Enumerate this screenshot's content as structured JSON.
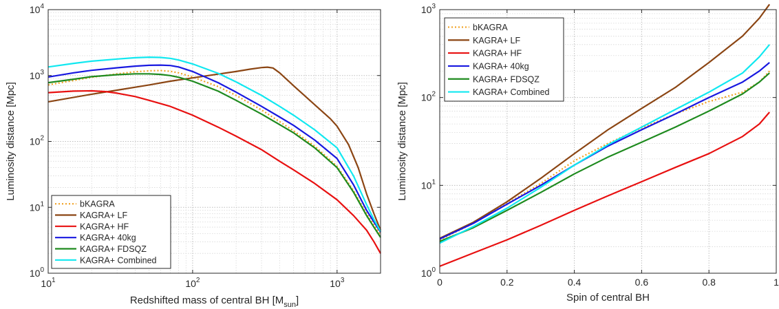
{
  "chart_data": [
    {
      "type": "line",
      "xscale": "log",
      "yscale": "log",
      "xlim": [
        10,
        2000
      ],
      "ylim": [
        1,
        10000
      ],
      "xlabel_main": "Redshifted mass of central BH [M",
      "xlabel_sub": "sun",
      "xlabel_end": "]",
      "ylabel": "Luminosity distance [Mpc]",
      "xticks": [
        {
          "value": 10,
          "base": "10",
          "exp": "1"
        },
        {
          "value": 100,
          "base": "10",
          "exp": "2"
        },
        {
          "value": 1000,
          "base": "10",
          "exp": "3"
        }
      ],
      "yticks": [
        {
          "value": 1,
          "base": "10",
          "exp": "0"
        },
        {
          "value": 10,
          "base": "10",
          "exp": "1"
        },
        {
          "value": 100,
          "base": "10",
          "exp": "2"
        },
        {
          "value": 1000,
          "base": "10",
          "exp": "3"
        },
        {
          "value": 10000,
          "base": "10",
          "exp": "4"
        }
      ],
      "grid": true,
      "legend_position": "bottom-left",
      "series": [
        {
          "name": "bKAGRA",
          "color": "#f0a020",
          "dash": true,
          "points": [
            [
              10,
              720
            ],
            [
              15,
              840
            ],
            [
              20,
              940
            ],
            [
              30,
              1060
            ],
            [
              40,
              1140
            ],
            [
              50,
              1180
            ],
            [
              60,
              1190
            ],
            [
              70,
              1160
            ],
            [
              80,
              1100
            ],
            [
              100,
              950
            ],
            [
              150,
              680
            ],
            [
              200,
              500
            ],
            [
              300,
              300
            ],
            [
              400,
              200
            ],
            [
              500,
              145
            ],
            [
              700,
              85
            ],
            [
              1000,
              42
            ],
            [
              1300,
              18
            ],
            [
              1600,
              8
            ],
            [
              1800,
              5.5
            ],
            [
              2000,
              3.8
            ]
          ]
        },
        {
          "name": "KAGRA+ LF",
          "color": "#8b4513",
          "dash": false,
          "points": [
            [
              10,
              400
            ],
            [
              20,
              520
            ],
            [
              30,
              600
            ],
            [
              50,
              720
            ],
            [
              70,
              820
            ],
            [
              100,
              920
            ],
            [
              150,
              1050
            ],
            [
              200,
              1150
            ],
            [
              250,
              1250
            ],
            [
              300,
              1320
            ],
            [
              330,
              1340
            ],
            [
              360,
              1300
            ],
            [
              400,
              1100
            ],
            [
              500,
              700
            ],
            [
              700,
              360
            ],
            [
              900,
              220
            ],
            [
              1000,
              170
            ],
            [
              1200,
              90
            ],
            [
              1400,
              40
            ],
            [
              1600,
              16
            ],
            [
              1800,
              8
            ],
            [
              2000,
              4.5
            ]
          ]
        },
        {
          "name": "KAGRA+ HF",
          "color": "#e81010",
          "dash": false,
          "points": [
            [
              10,
              550
            ],
            [
              15,
              580
            ],
            [
              20,
              585
            ],
            [
              25,
              570
            ],
            [
              30,
              540
            ],
            [
              40,
              480
            ],
            [
              50,
              420
            ],
            [
              70,
              340
            ],
            [
              100,
              250
            ],
            [
              150,
              165
            ],
            [
              200,
              120
            ],
            [
              300,
              75
            ],
            [
              400,
              50
            ],
            [
              500,
              37
            ],
            [
              700,
              23
            ],
            [
              1000,
              13
            ],
            [
              1300,
              7.5
            ],
            [
              1600,
              4.5
            ],
            [
              1800,
              3
            ],
            [
              2000,
              2
            ]
          ]
        },
        {
          "name": "KAGRA+ 40kg",
          "color": "#1818e0",
          "dash": false,
          "points": [
            [
              10,
              950
            ],
            [
              15,
              1100
            ],
            [
              20,
              1200
            ],
            [
              30,
              1310
            ],
            [
              40,
              1390
            ],
            [
              50,
              1430
            ],
            [
              60,
              1440
            ],
            [
              70,
              1420
            ],
            [
              80,
              1350
            ],
            [
              100,
              1150
            ],
            [
              150,
              780
            ],
            [
              200,
              560
            ],
            [
              300,
              340
            ],
            [
              400,
              235
            ],
            [
              500,
              175
            ],
            [
              700,
              105
            ],
            [
              1000,
              55
            ],
            [
              1300,
              22
            ],
            [
              1600,
              9
            ],
            [
              1800,
              6
            ],
            [
              2000,
              4.2
            ]
          ]
        },
        {
          "name": "KAGRA+ FDSQZ",
          "color": "#1e8a1e",
          "dash": false,
          "points": [
            [
              10,
              780
            ],
            [
              15,
              880
            ],
            [
              20,
              960
            ],
            [
              30,
              1030
            ],
            [
              40,
              1060
            ],
            [
              50,
              1060
            ],
            [
              60,
              1040
            ],
            [
              70,
              1000
            ],
            [
              80,
              940
            ],
            [
              100,
              820
            ],
            [
              150,
              580
            ],
            [
              200,
              420
            ],
            [
              300,
              260
            ],
            [
              400,
              180
            ],
            [
              500,
              135
            ],
            [
              700,
              80
            ],
            [
              1000,
              40
            ],
            [
              1300,
              17
            ],
            [
              1600,
              7.5
            ],
            [
              1800,
              5
            ],
            [
              2000,
              3.5
            ]
          ]
        },
        {
          "name": "KAGRA+ Combined",
          "color": "#10e8f0",
          "dash": false,
          "points": [
            [
              10,
              1350
            ],
            [
              15,
              1530
            ],
            [
              20,
              1650
            ],
            [
              30,
              1780
            ],
            [
              40,
              1860
            ],
            [
              50,
              1900
            ],
            [
              60,
              1880
            ],
            [
              70,
              1820
            ],
            [
              80,
              1720
            ],
            [
              100,
              1500
            ],
            [
              150,
              1080
            ],
            [
              200,
              800
            ],
            [
              300,
              500
            ],
            [
              400,
              340
            ],
            [
              500,
              250
            ],
            [
              700,
              150
            ],
            [
              1000,
              80
            ],
            [
              1300,
              30
            ],
            [
              1600,
              11
            ],
            [
              1800,
              6.5
            ],
            [
              2000,
              4.3
            ]
          ]
        }
      ]
    },
    {
      "type": "line",
      "xscale": "linear",
      "yscale": "log",
      "xlim": [
        0,
        1
      ],
      "ylim": [
        1,
        1000
      ],
      "xlabel": "Spin of central BH",
      "ylabel": "Luminosity distance [Mpc]",
      "xticks": [
        {
          "value": 0,
          "label": "0"
        },
        {
          "value": 0.2,
          "label": "0.2"
        },
        {
          "value": 0.4,
          "label": "0.4"
        },
        {
          "value": 0.6,
          "label": "0.6"
        },
        {
          "value": 0.8,
          "label": "0.8"
        },
        {
          "value": 1,
          "label": "1"
        }
      ],
      "yticks": [
        {
          "value": 1,
          "base": "10",
          "exp": "0"
        },
        {
          "value": 10,
          "base": "10",
          "exp": "1"
        },
        {
          "value": 100,
          "base": "10",
          "exp": "2"
        },
        {
          "value": 1000,
          "base": "10",
          "exp": "3"
        }
      ],
      "grid": true,
      "legend_position": "top-left",
      "series": [
        {
          "name": "bKAGRA",
          "color": "#f0a020",
          "dash": true,
          "points": [
            [
              0,
              2.4
            ],
            [
              0.1,
              3.7
            ],
            [
              0.2,
              6.2
            ],
            [
              0.3,
              10.5
            ],
            [
              0.4,
              19
            ],
            [
              0.5,
              30
            ],
            [
              0.6,
              45
            ],
            [
              0.7,
              65
            ],
            [
              0.8,
              90
            ],
            [
              0.9,
              115
            ],
            [
              0.95,
              150
            ],
            [
              0.98,
              200
            ]
          ]
        },
        {
          "name": "KAGRA+ LF",
          "color": "#8b4513",
          "dash": false,
          "points": [
            [
              0,
              2.5
            ],
            [
              0.1,
              3.8
            ],
            [
              0.2,
              6.5
            ],
            [
              0.3,
              12
            ],
            [
              0.4,
              23
            ],
            [
              0.5,
              43
            ],
            [
              0.6,
              75
            ],
            [
              0.7,
              130
            ],
            [
              0.8,
              250
            ],
            [
              0.9,
              500
            ],
            [
              0.95,
              800
            ],
            [
              0.98,
              1150
            ]
          ]
        },
        {
          "name": "KAGRA+ HF",
          "color": "#e81010",
          "dash": false,
          "points": [
            [
              0,
              1.2
            ],
            [
              0.1,
              1.7
            ],
            [
              0.2,
              2.4
            ],
            [
              0.3,
              3.5
            ],
            [
              0.4,
              5.2
            ],
            [
              0.5,
              7.6
            ],
            [
              0.6,
              11
            ],
            [
              0.7,
              16
            ],
            [
              0.8,
              23
            ],
            [
              0.9,
              36
            ],
            [
              0.95,
              50
            ],
            [
              0.98,
              68
            ]
          ]
        },
        {
          "name": "KAGRA+ 40kg",
          "color": "#1818e0",
          "dash": false,
          "points": [
            [
              0,
              2.45
            ],
            [
              0.1,
              3.7
            ],
            [
              0.2,
              6.1
            ],
            [
              0.3,
              10
            ],
            [
              0.4,
              17
            ],
            [
              0.5,
              28
            ],
            [
              0.6,
              43
            ],
            [
              0.7,
              65
            ],
            [
              0.8,
              100
            ],
            [
              0.9,
              150
            ],
            [
              0.95,
              200
            ],
            [
              0.98,
              250
            ]
          ]
        },
        {
          "name": "KAGRA+ FDSQZ",
          "color": "#1e8a1e",
          "dash": false,
          "points": [
            [
              0,
              2.3
            ],
            [
              0.1,
              3.3
            ],
            [
              0.2,
              5.2
            ],
            [
              0.3,
              8.3
            ],
            [
              0.4,
              13.5
            ],
            [
              0.5,
              21
            ],
            [
              0.6,
              31
            ],
            [
              0.7,
              46
            ],
            [
              0.8,
              70
            ],
            [
              0.9,
              110
            ],
            [
              0.95,
              150
            ],
            [
              0.98,
              190
            ]
          ]
        },
        {
          "name": "KAGRA+ Combined",
          "color": "#10e8f0",
          "dash": false,
          "points": [
            [
              0,
              2.2
            ],
            [
              0.1,
              3.4
            ],
            [
              0.2,
              5.5
            ],
            [
              0.3,
              9.5
            ],
            [
              0.4,
              17
            ],
            [
              0.5,
              29
            ],
            [
              0.6,
              46
            ],
            [
              0.7,
              73
            ],
            [
              0.8,
              115
            ],
            [
              0.9,
              190
            ],
            [
              0.95,
              290
            ],
            [
              0.98,
              400
            ]
          ]
        }
      ]
    }
  ]
}
